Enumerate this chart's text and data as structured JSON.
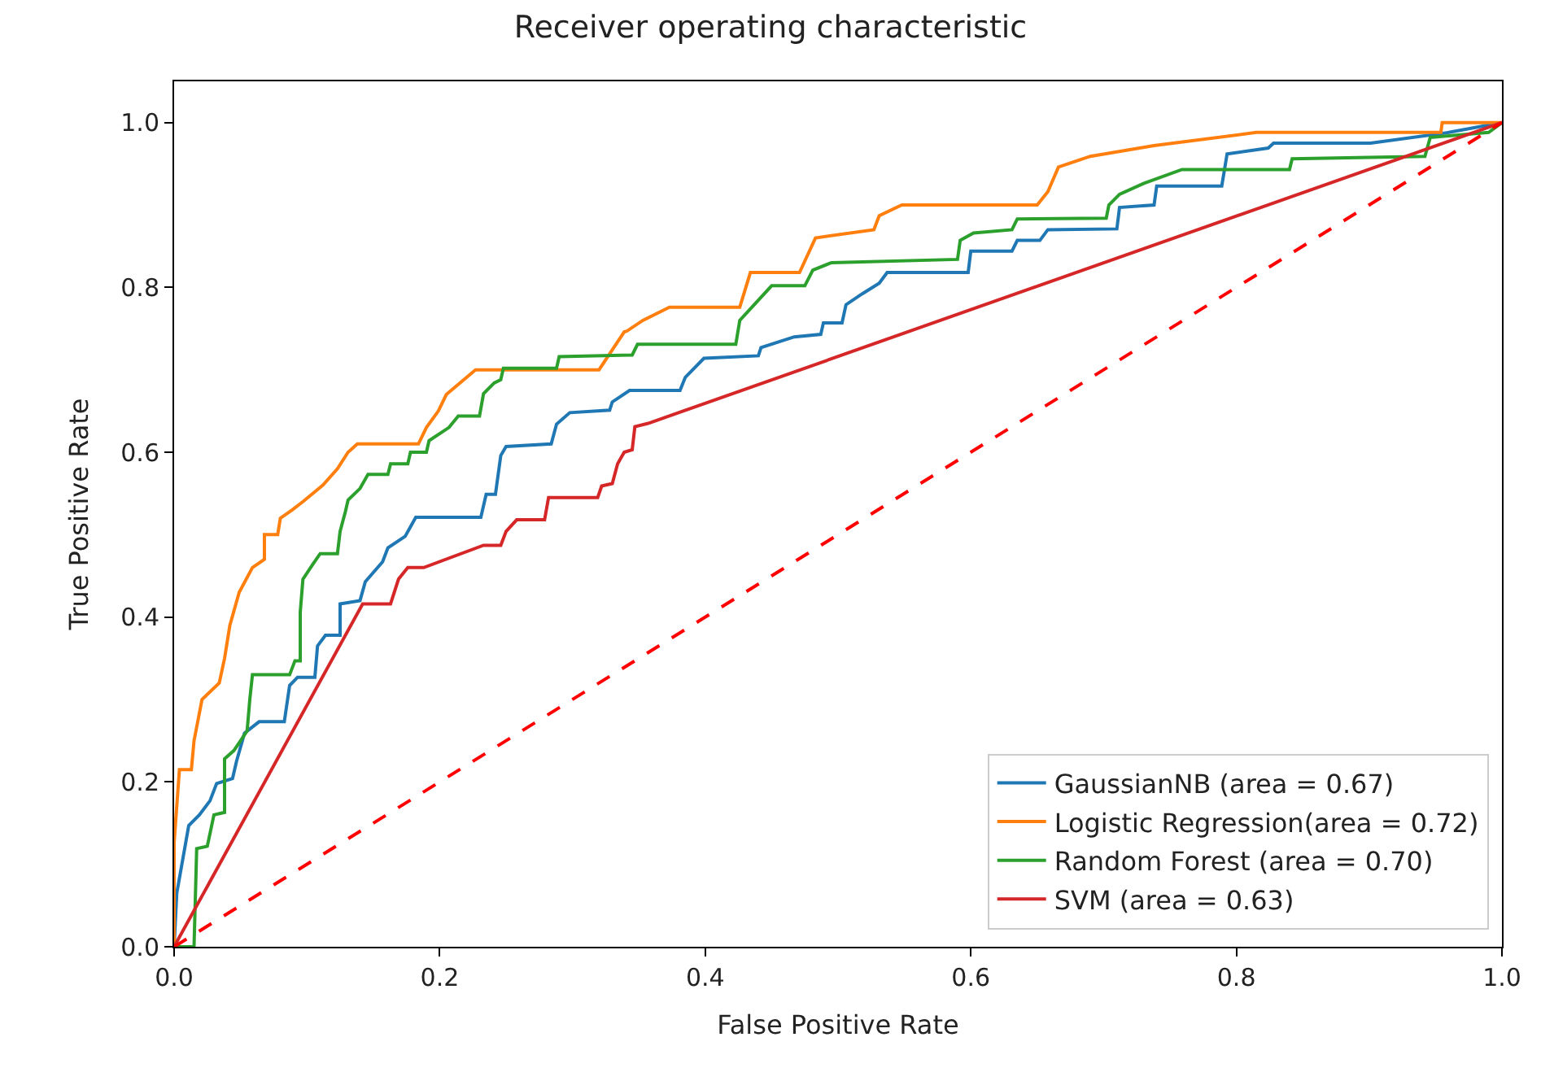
{
  "chart_data": {
    "type": "line",
    "title": "Receiver operating characteristic",
    "xlabel": "False Positive Rate",
    "ylabel": "True Positive Rate",
    "xlim": [
      0,
      1
    ],
    "ylim": [
      0,
      1.05
    ],
    "xticks": [
      {
        "value": 0,
        "label": "0.0"
      },
      {
        "value": 0.2,
        "label": "0.2"
      },
      {
        "value": 0.4,
        "label": "0.4"
      },
      {
        "value": 0.6,
        "label": "0.6"
      },
      {
        "value": 0.8,
        "label": "0.8"
      },
      {
        "value": 1,
        "label": "1.0"
      }
    ],
    "yticks": [
      {
        "value": 0,
        "label": "0.0"
      },
      {
        "value": 0.2,
        "label": "0.2"
      },
      {
        "value": 0.4,
        "label": "0.4"
      },
      {
        "value": 0.6,
        "label": "0.6"
      },
      {
        "value": 0.8,
        "label": "0.8"
      },
      {
        "value": 1,
        "label": "1.0"
      }
    ],
    "legend": "bottom right",
    "marker": "none",
    "series": [
      {
        "name": "GaussianNB (area = 0.67)",
        "color": "#1f77b4",
        "x": [
          0,
          0.002,
          0.011,
          0.019,
          0.027,
          0.032,
          0.044,
          0.047,
          0.053,
          0.064,
          0.083,
          0.087,
          0.093,
          0.106,
          0.108,
          0.114,
          0.125,
          0.125,
          0.14,
          0.144,
          0.157,
          0.161,
          0.174,
          0.182,
          0.231,
          0.235,
          0.242,
          0.246,
          0.25,
          0.284,
          0.288,
          0.298,
          0.328,
          0.33,
          0.343,
          0.381,
          0.385,
          0.399,
          0.44,
          0.442,
          0.467,
          0.487,
          0.489,
          0.503,
          0.506,
          0.518,
          0.531,
          0.537,
          0.598,
          0.6,
          0.631,
          0.635,
          0.652,
          0.658,
          0.71,
          0.712,
          0.738,
          0.74,
          0.789,
          0.793,
          0.824,
          0.828,
          0.901,
          0.96,
          1
        ],
        "values": [
          0,
          0.065,
          0.147,
          0.16,
          0.177,
          0.198,
          0.204,
          0.225,
          0.259,
          0.273,
          0.273,
          0.317,
          0.327,
          0.327,
          0.365,
          0.378,
          0.378,
          0.416,
          0.42,
          0.443,
          0.467,
          0.484,
          0.498,
          0.521,
          0.521,
          0.549,
          0.549,
          0.596,
          0.607,
          0.61,
          0.634,
          0.648,
          0.651,
          0.661,
          0.675,
          0.675,
          0.691,
          0.714,
          0.717,
          0.727,
          0.74,
          0.743,
          0.757,
          0.757,
          0.779,
          0.792,
          0.805,
          0.818,
          0.818,
          0.844,
          0.844,
          0.857,
          0.857,
          0.87,
          0.871,
          0.897,
          0.9,
          0.923,
          0.923,
          0.962,
          0.969,
          0.975,
          0.975,
          0.988,
          1
        ]
      },
      {
        "name": "Logistic Regression(area = 0.72)",
        "color": "#ff7f0e",
        "x": [
          0,
          0,
          0.004,
          0.013,
          0.015,
          0.021,
          0.034,
          0.038,
          0.042,
          0.049,
          0.059,
          0.068,
          0.068,
          0.078,
          0.08,
          0.089,
          0.097,
          0.112,
          0.123,
          0.131,
          0.138,
          0.184,
          0.19,
          0.199,
          0.205,
          0.227,
          0.32,
          0.339,
          0.341,
          0.353,
          0.373,
          0.426,
          0.434,
          0.471,
          0.483,
          0.527,
          0.531,
          0.548,
          0.65,
          0.658,
          0.666,
          0.69,
          0.738,
          0.815,
          0.954,
          0.955,
          1
        ],
        "values": [
          0,
          0.126,
          0.215,
          0.215,
          0.25,
          0.3,
          0.32,
          0.35,
          0.39,
          0.43,
          0.46,
          0.47,
          0.5,
          0.5,
          0.52,
          0.53,
          0.54,
          0.56,
          0.58,
          0.6,
          0.61,
          0.61,
          0.63,
          0.65,
          0.67,
          0.7,
          0.7,
          0.746,
          0.747,
          0.76,
          0.776,
          0.776,
          0.818,
          0.818,
          0.86,
          0.87,
          0.887,
          0.9,
          0.9,
          0.916,
          0.946,
          0.959,
          0.972,
          0.988,
          0.988,
          1,
          1
        ]
      },
      {
        "name": "Random Forest (area = 0.70)",
        "color": "#2ca02c",
        "x": [
          0,
          0.015,
          0.017,
          0.025,
          0.03,
          0.038,
          0.038,
          0.045,
          0.055,
          0.057,
          0.059,
          0.087,
          0.091,
          0.095,
          0.095,
          0.097,
          0.104,
          0.11,
          0.123,
          0.125,
          0.129,
          0.131,
          0.14,
          0.146,
          0.161,
          0.163,
          0.176,
          0.178,
          0.19,
          0.192,
          0.207,
          0.214,
          0.23,
          0.233,
          0.241,
          0.246,
          0.248,
          0.288,
          0.29,
          0.345,
          0.349,
          0.423,
          0.426,
          0.45,
          0.475,
          0.481,
          0.495,
          0.59,
          0.592,
          0.602,
          0.631,
          0.635,
          0.702,
          0.704,
          0.712,
          0.73,
          0.759,
          0.84,
          0.842,
          0.942,
          0.946,
          0.99,
          1
        ],
        "values": [
          0,
          0,
          0.119,
          0.122,
          0.16,
          0.163,
          0.228,
          0.238,
          0.262,
          0.3,
          0.33,
          0.33,
          0.347,
          0.347,
          0.406,
          0.446,
          0.463,
          0.477,
          0.477,
          0.504,
          0.528,
          0.542,
          0.556,
          0.573,
          0.573,
          0.586,
          0.586,
          0.6,
          0.6,
          0.614,
          0.63,
          0.644,
          0.644,
          0.671,
          0.684,
          0.688,
          0.702,
          0.702,
          0.716,
          0.718,
          0.731,
          0.731,
          0.76,
          0.802,
          0.802,
          0.821,
          0.83,
          0.834,
          0.857,
          0.866,
          0.87,
          0.883,
          0.884,
          0.9,
          0.913,
          0.926,
          0.943,
          0.943,
          0.956,
          0.959,
          0.982,
          0.988,
          1
        ]
      },
      {
        "name": "SVM (area = 0.63)",
        "color": "#d62728",
        "x": [
          0,
          0.142,
          0.163,
          0.169,
          0.176,
          0.188,
          0.233,
          0.246,
          0.25,
          0.258,
          0.279,
          0.282,
          0.319,
          0.322,
          0.33,
          0.334,
          0.339,
          0.345,
          0.347,
          0.357,
          1
        ],
        "values": [
          0,
          0.416,
          0.416,
          0.446,
          0.46,
          0.46,
          0.487,
          0.487,
          0.504,
          0.518,
          0.518,
          0.545,
          0.545,
          0.559,
          0.562,
          0.586,
          0.6,
          0.603,
          0.631,
          0.635,
          1
        ]
      },
      {
        "color": "#ff0000",
        "line_style": "dashed",
        "x": [
          0,
          1
        ],
        "values": [
          0,
          1
        ]
      }
    ]
  }
}
